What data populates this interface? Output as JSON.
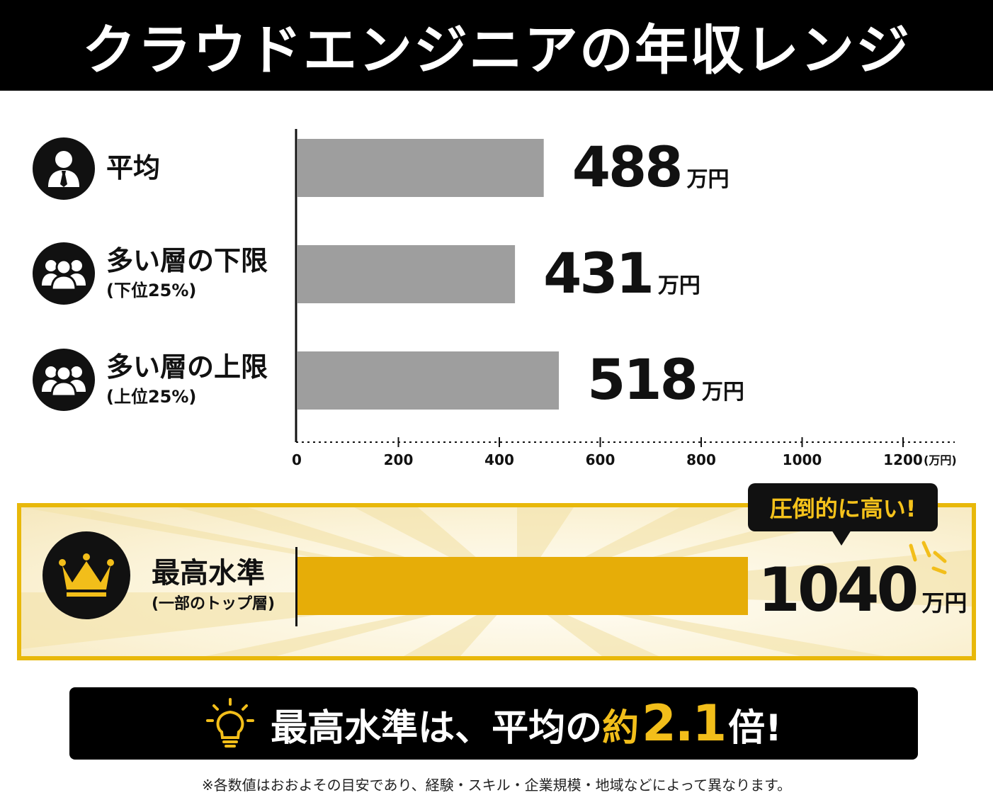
{
  "title": "クラウドエンジニアの年収レンジ",
  "rows": [
    {
      "label": "平均",
      "sub": "",
      "icon": "person-icon"
    },
    {
      "label": "多い層の下限",
      "sub": "(下位25%)",
      "icon": "group-icon"
    },
    {
      "label": "多い層の上限",
      "sub": "(上位25%)",
      "icon": "group-icon"
    }
  ],
  "value_labels": [
    {
      "value": "488",
      "unit": "万円"
    },
    {
      "value": "431",
      "unit": "万円"
    },
    {
      "value": "518",
      "unit": "万円"
    }
  ],
  "top": {
    "label": "最高水準",
    "sub": "(一部のトップ層)",
    "value": "1040",
    "unit": "万円",
    "callout": "圧倒的に高い!",
    "icon": "crown-icon"
  },
  "summary": {
    "prefix": "最高水準は、平均の",
    "about": "約",
    "multiplier": "2.1",
    "suffix": "倍!",
    "icon": "lightbulb-icon"
  },
  "footnote": "※各数値はおおよその目安であり、経験・スキル・企業規模・地域などによって異なります。",
  "colors": {
    "bar": "#9e9e9e",
    "top_bar": "#e6ad08",
    "accent": "#f2be1a",
    "header_bg": "#000000"
  },
  "chart_data": {
    "type": "bar",
    "orientation": "horizontal",
    "title": "クラウドエンジニアの年収レンジ",
    "categories": [
      "平均",
      "多い層の下限(下位25%)",
      "多い層の上限(上位25%)",
      "最高水準(一部のトップ層)"
    ],
    "values": [
      488,
      431,
      518,
      1040
    ],
    "xlim": [
      0,
      1300
    ],
    "xticks": [
      0,
      200,
      400,
      600,
      800,
      1000,
      1200
    ],
    "xunit": "(万円)",
    "value_unit": "万円",
    "grid": false,
    "legend": "none"
  }
}
